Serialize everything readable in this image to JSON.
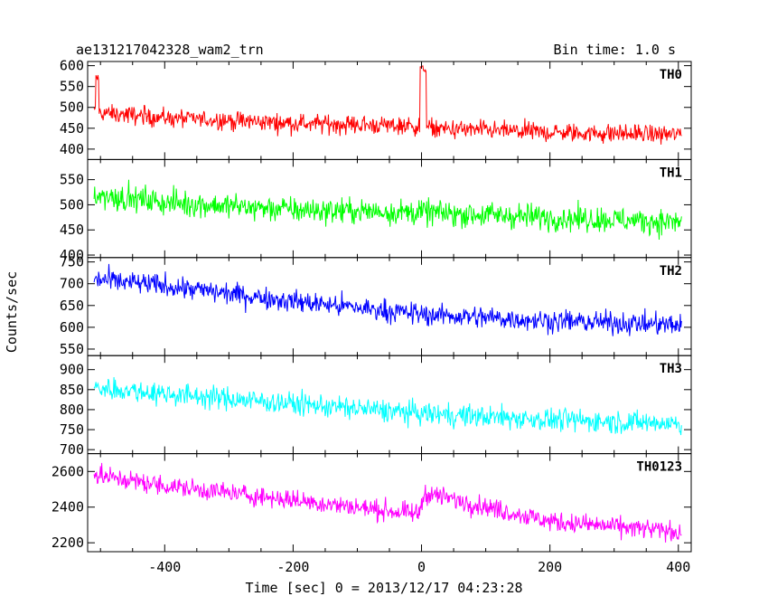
{
  "header": {
    "title": "ae131217042328_wam2_trn",
    "bin_time": "Bin time: 1.0 s"
  },
  "chart_data": {
    "type": "line",
    "xlabel": "Time [sec] 0 = 2013/12/17 04:23:28",
    "ylabel": "Counts/sec",
    "xlim": [
      -520,
      420
    ],
    "xticks": [
      -400,
      -200,
      0,
      200,
      400
    ],
    "x_range_data": [
      -510,
      405
    ],
    "panels": [
      {
        "name": "TH0",
        "color": "#ff0000",
        "ylim": [
          375,
          610
        ],
        "yticks": [
          400,
          450,
          500,
          550,
          600
        ],
        "trend": [
          [
            -510,
            488
          ],
          [
            -400,
            475
          ],
          [
            -200,
            462
          ],
          [
            -5,
            455
          ],
          [
            5,
            450
          ],
          [
            200,
            440
          ],
          [
            405,
            435
          ]
        ],
        "noise": 22,
        "features": [
          {
            "x": -505,
            "y": 580,
            "desc": "initial spike"
          },
          {
            "x": 0,
            "y": 610,
            "desc": "burst near T0"
          },
          {
            "x": 5,
            "y": 590,
            "desc": "burst near T0"
          }
        ]
      },
      {
        "name": "TH1",
        "color": "#00ff00",
        "ylim": [
          395,
          590
        ],
        "yticks": [
          400,
          450,
          500,
          550
        ],
        "trend": [
          [
            -510,
            520
          ],
          [
            -400,
            505
          ],
          [
            -200,
            490
          ],
          [
            0,
            485
          ],
          [
            200,
            475
          ],
          [
            405,
            465
          ]
        ],
        "noise": 25
      },
      {
        "name": "TH2",
        "color": "#0000ff",
        "ylim": [
          535,
          760
        ],
        "yticks": [
          550,
          600,
          650,
          700,
          750
        ],
        "trend": [
          [
            -510,
            710
          ],
          [
            -400,
            695
          ],
          [
            -200,
            660
          ],
          [
            0,
            630
          ],
          [
            200,
            615
          ],
          [
            405,
            605
          ]
        ],
        "noise": 25
      },
      {
        "name": "TH3",
        "color": "#00ffff",
        "ylim": [
          690,
          935
        ],
        "yticks": [
          700,
          750,
          800,
          850,
          900
        ],
        "trend": [
          [
            -510,
            855
          ],
          [
            -400,
            840
          ],
          [
            -200,
            815
          ],
          [
            0,
            790
          ],
          [
            200,
            775
          ],
          [
            405,
            765
          ]
        ],
        "noise": 28
      },
      {
        "name": "TH0123",
        "color": "#ff00ff",
        "ylim": [
          2150,
          2700
        ],
        "yticks": [
          2200,
          2400,
          2600
        ],
        "trend": [
          [
            -510,
            2580
          ],
          [
            -400,
            2520
          ],
          [
            -200,
            2440
          ],
          [
            -5,
            2360
          ],
          [
            5,
            2480
          ],
          [
            200,
            2320
          ],
          [
            405,
            2260
          ]
        ],
        "noise": 55
      }
    ]
  }
}
